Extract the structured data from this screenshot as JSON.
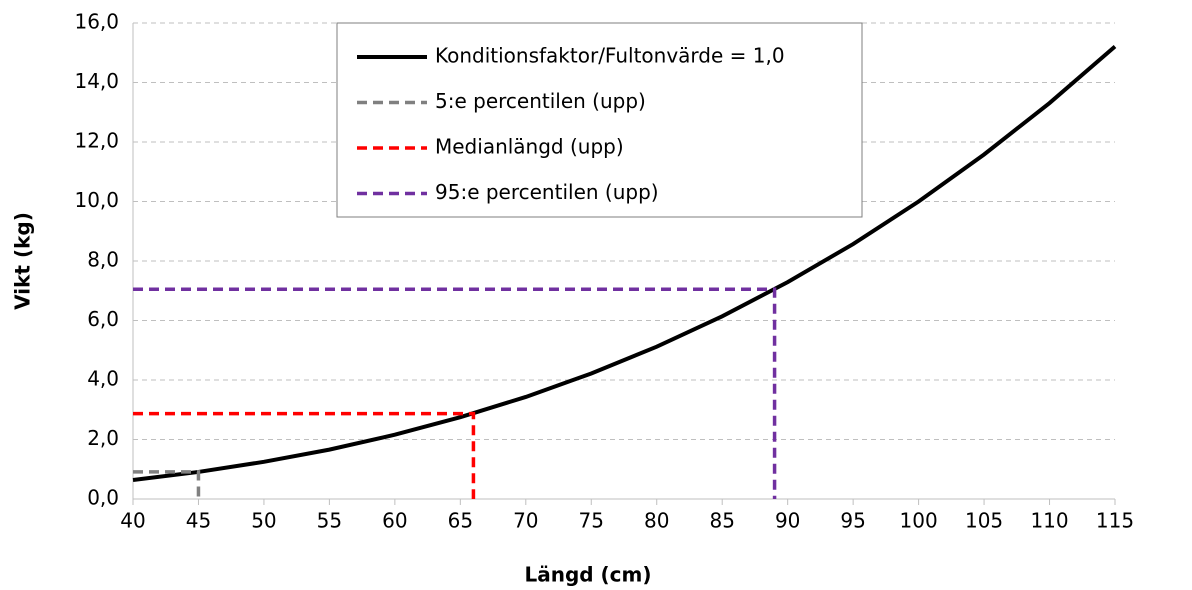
{
  "chart_data": {
    "type": "line",
    "x_label": "Längd (cm)",
    "y_label": "Vikt (kg)",
    "xlim": [
      40,
      115
    ],
    "xticks": [
      40,
      45,
      50,
      55,
      60,
      65,
      70,
      75,
      80,
      85,
      90,
      95,
      100,
      105,
      110,
      115
    ],
    "ylim": [
      0,
      16
    ],
    "yticks": [
      {
        "value": 0,
        "label": "0,0"
      },
      {
        "value": 2,
        "label": "2,0"
      },
      {
        "value": 4,
        "label": "4,0"
      },
      {
        "value": 6,
        "label": "6,0"
      },
      {
        "value": 8,
        "label": "8,0"
      },
      {
        "value": 10,
        "label": "10,0"
      },
      {
        "value": 12,
        "label": "12,0"
      },
      {
        "value": 14,
        "label": "14,0"
      },
      {
        "value": 16,
        "label": "16,0"
      }
    ],
    "grid": true,
    "legend": "top",
    "series": [
      {
        "name": "Konditionsfaktor/Fultonvärde = 1,0",
        "color": "#000000",
        "dashed": false,
        "x": [
          40,
          45,
          50,
          55,
          60,
          65,
          70,
          75,
          80,
          85,
          90,
          95,
          100,
          105,
          110,
          115
        ],
        "values": [
          0.64,
          0.91,
          1.25,
          1.66,
          2.16,
          2.75,
          3.43,
          4.22,
          5.12,
          6.14,
          7.29,
          8.57,
          10,
          11.58,
          13.31,
          15.21
        ]
      },
      {
        "name": "5:e percentilen (upp)",
        "color": "#808080",
        "dashed": true,
        "x": [
          40,
          45,
          45
        ],
        "values": [
          0.91,
          0.91,
          0
        ]
      },
      {
        "name": "Medianlängd (upp)",
        "color": "#ff0000",
        "dashed": true,
        "x": [
          40,
          66,
          66
        ],
        "values": [
          2.87,
          2.87,
          0
        ]
      },
      {
        "name": "95:e percentilen (upp)",
        "color": "#7030a0",
        "dashed": true,
        "x": [
          40,
          89,
          89
        ],
        "values": [
          7.05,
          7.05,
          0
        ]
      }
    ]
  }
}
